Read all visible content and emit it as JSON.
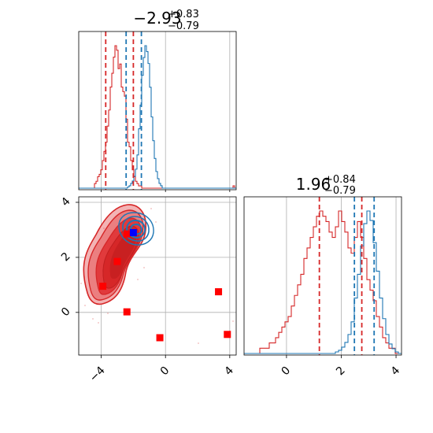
{
  "chart_data": {
    "type": "corner",
    "colors": {
      "red": "#d62728",
      "blue": "#1f77b4",
      "grid": "#b0b0b0",
      "marker_red": "#ff0000",
      "marker_blue": "#0000ff"
    },
    "params": [
      {
        "title": {
          "median": "−2.93",
          "upper": "+0.83",
          "lower": "−0.79"
        },
        "hist_range": [
          -5.4,
          4.4
        ],
        "red_hist": [
          0,
          0,
          0,
          0,
          0,
          0,
          0,
          0,
          0,
          0,
          2,
          3,
          5,
          6,
          8,
          12,
          16,
          20,
          27,
          34,
          44,
          50,
          57,
          62,
          60,
          52,
          54,
          44,
          42,
          40,
          30,
          20,
          18,
          12,
          8,
          5,
          3,
          2,
          1,
          1,
          0,
          0,
          0,
          0,
          0,
          0,
          0,
          0,
          0,
          0,
          0,
          0,
          0,
          0,
          0,
          0,
          0,
          0,
          0,
          0,
          0,
          0,
          0,
          0,
          0,
          0,
          0,
          0,
          0,
          0,
          0,
          0,
          0,
          0,
          0,
          0,
          0,
          0,
          0,
          0,
          0,
          0,
          0,
          0,
          0,
          0,
          0,
          0,
          0,
          0,
          0,
          0,
          0,
          0,
          0,
          0,
          0,
          0,
          1,
          0
        ],
        "blue_hist": [
          0,
          0,
          0,
          0,
          0,
          0,
          0,
          0,
          0,
          0,
          0,
          0,
          0,
          0,
          0,
          0,
          0,
          0,
          0,
          0,
          0,
          0,
          0,
          0,
          0,
          0,
          0,
          0,
          0,
          0,
          0,
          1,
          2,
          4,
          6,
          10,
          16,
          28,
          50,
          70,
          95,
          110,
          120,
          115,
          105,
          85,
          60,
          40,
          25,
          14,
          8,
          4,
          2,
          0,
          0,
          0,
          0,
          0,
          0,
          0,
          0,
          0,
          0,
          0,
          0,
          0,
          0,
          0,
          0,
          0,
          0,
          0,
          0,
          0,
          0,
          0,
          0,
          0,
          0,
          0,
          0,
          0,
          0,
          0,
          0,
          0,
          0,
          0,
          0,
          0,
          0,
          0,
          0,
          0,
          0,
          0,
          0,
          0,
          0,
          0
        ],
        "red_lines": [
          -3.72,
          -2.0
        ],
        "blue_lines": [
          -2.45,
          -1.5
        ],
        "grid_x": [
          -4,
          0,
          4
        ]
      },
      {
        "title": {
          "median": "1.96",
          "upper": "+0.84",
          "lower": "−0.79"
        },
        "hist_range": [
          -1.55,
          4.2
        ],
        "red_hist": [
          0,
          0,
          0,
          0,
          0,
          1,
          1,
          1,
          2,
          2,
          3,
          4,
          5,
          6,
          7,
          9,
          11,
          13,
          15,
          18,
          20,
          22,
          24,
          26,
          27,
          26,
          25,
          23,
          22,
          24,
          27,
          25,
          23,
          20,
          19,
          22,
          25,
          22,
          18,
          14,
          12,
          10,
          7,
          5,
          3,
          2,
          1,
          1,
          0,
          0
        ],
        "blue_hist": [
          0,
          0,
          0,
          0,
          0,
          0,
          0,
          0,
          0,
          0,
          0,
          0,
          0,
          0,
          0,
          0,
          0,
          0,
          0,
          0,
          0,
          0,
          0,
          0,
          0,
          0,
          0,
          0,
          0,
          1,
          2,
          4,
          7,
          12,
          20,
          35,
          50,
          68,
          82,
          90,
          84,
          70,
          52,
          35,
          22,
          12,
          6,
          3,
          1,
          0
        ],
        "red_lines": [
          1.2,
          2.75
        ],
        "blue_lines": [
          2.48,
          3.2
        ],
        "grid_x": [
          0,
          2,
          4
        ]
      }
    ],
    "scatter_panel": {
      "xlim": [
        -5.4,
        4.4
      ],
      "ylim": [
        -1.55,
        4.2
      ],
      "xticks": [
        "−4",
        "0",
        "4"
      ],
      "yticks": [
        "0",
        "2",
        "4"
      ],
      "red_markers": [
        [
          -3.9,
          0.95
        ],
        [
          -3.0,
          1.85
        ],
        [
          -2.4,
          2.85
        ],
        [
          -2.4,
          0.02
        ],
        [
          -0.35,
          -0.92
        ],
        [
          3.3,
          0.75
        ],
        [
          3.85,
          -0.8
        ]
      ],
      "blue_markers": [
        [
          -2.0,
          2.9
        ]
      ]
    },
    "diag_xticks": [
      "0",
      "2",
      "4"
    ]
  }
}
